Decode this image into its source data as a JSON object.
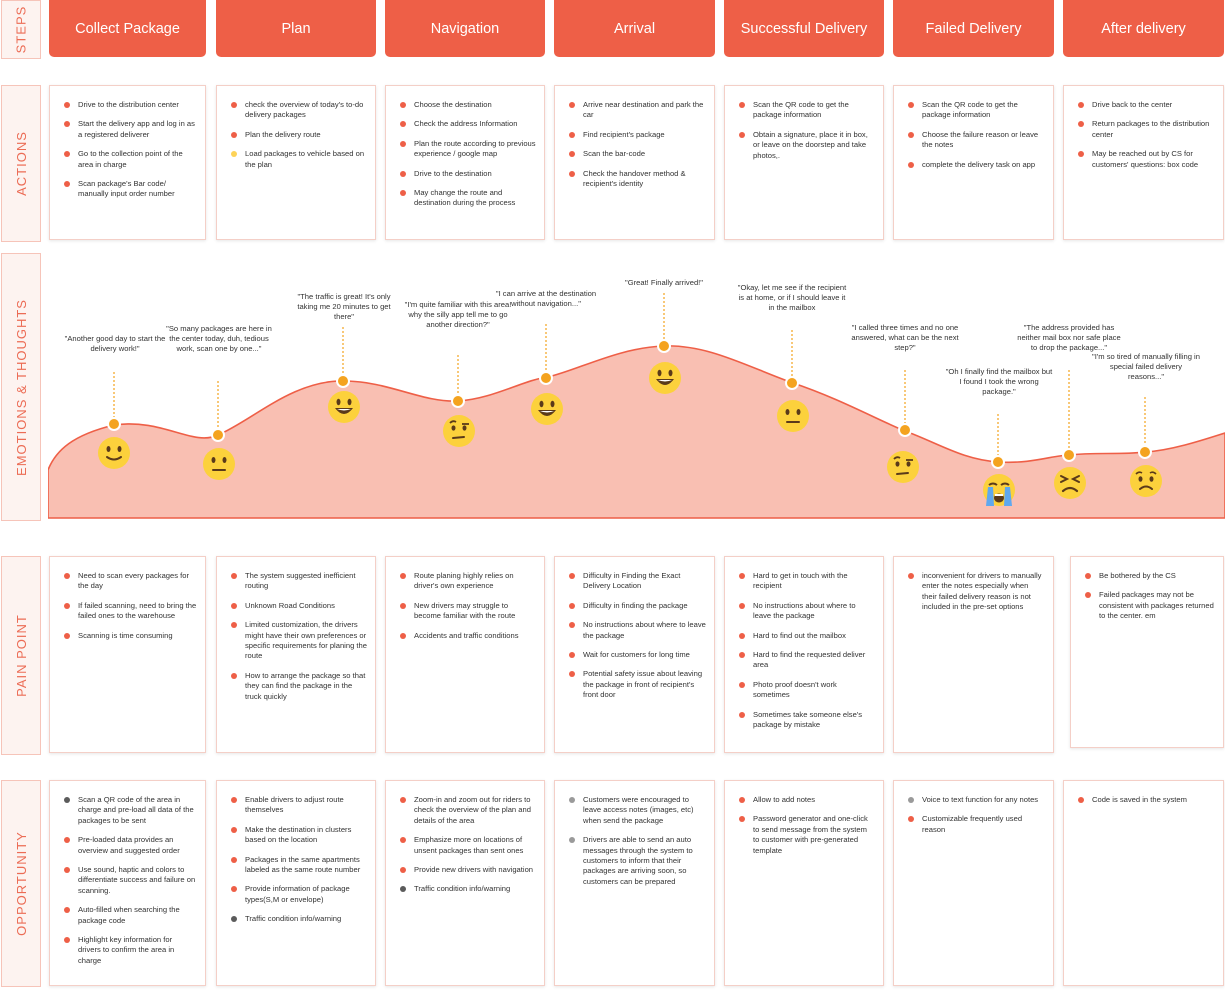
{
  "row_labels": {
    "steps": "STEPS",
    "actions": "ACTIONS",
    "emotions": "EMOTIONS & THOUGHTS",
    "pain": "PAIN POINT",
    "opportunity": "OPPORTUNITY"
  },
  "colors": {
    "accent": "#ee5f47",
    "curve_fill": "#f9bfb2",
    "point": "#f4a31f",
    "emoji_face": "#fcd13c",
    "bullet_yellow": "#fdd358",
    "bullet_gray": "#5b5b5b",
    "bullet_lightgray": "#9a9a9a"
  },
  "columns": [
    {
      "step": "Collect Package",
      "actions": [
        {
          "text": "Drive to the distribution center",
          "dot": "red"
        },
        {
          "text": "Start the delivery app and log in as a registered deliverer",
          "dot": "red"
        },
        {
          "text": "Go to the collection point of the area in charge",
          "dot": "red"
        },
        {
          "text": "Scan package's Bar code/ manually input order number",
          "dot": "red"
        }
      ],
      "pain": [
        {
          "text": "Need to scan every packages for the day",
          "dot": "red"
        },
        {
          "text": "If failed scanning, need to bring the failed ones to the warehouse",
          "dot": "red"
        },
        {
          "text": "Scanning is time consuming",
          "dot": "red"
        }
      ],
      "opportunity": [
        {
          "text": "Scan a QR code of the area in charge and pre-load all data of the packages to be sent",
          "dot": "gray"
        },
        {
          "text": "Pre-loaded data provides an overview and suggested order",
          "dot": "red"
        },
        {
          "text": "Use sound, haptic and colors to differentiate success and failure on scanning.",
          "dot": "red"
        },
        {
          "text": "Auto-filled when searching the package code",
          "dot": "red"
        },
        {
          "text": "Highlight key information for drivers to confirm the area in charge",
          "dot": "red"
        }
      ]
    },
    {
      "step": "Plan",
      "actions": [
        {
          "text": "check the overview of today's to-do delivery packages",
          "dot": "red"
        },
        {
          "text": "Plan the delivery route",
          "dot": "red"
        },
        {
          "text": "Load packages to vehicle based on the plan",
          "dot": "yellow"
        }
      ],
      "pain": [
        {
          "text": "The system suggested inefficient routing",
          "dot": "red"
        },
        {
          "text": "Unknown Road Conditions",
          "dot": "red"
        },
        {
          "text": "Limited customization, the drivers might have their own preferences or specific requirements for planing the route",
          "dot": "red"
        },
        {
          "text": "How to arrange the package so that they can find the package in the truck quickly",
          "dot": "red"
        }
      ],
      "opportunity": [
        {
          "text": "Enable drivers to adjust route themselves",
          "dot": "red"
        },
        {
          "text": "Make the destination in clusters based on the location",
          "dot": "red"
        },
        {
          "text": "Packages in the same apartments labeled as the same route number",
          "dot": "red"
        },
        {
          "text": "Provide information of package types(S,M or envelope)",
          "dot": "red"
        },
        {
          "text": "Traffic condition info/warning",
          "dot": "gray"
        }
      ]
    },
    {
      "step": "Navigation",
      "actions": [
        {
          "text": "Choose the destination",
          "dot": "red"
        },
        {
          "text": "Check the address Information",
          "dot": "red"
        },
        {
          "text": "Plan the route according to previous experience / google map",
          "dot": "red"
        },
        {
          "text": "Drive to the destination",
          "dot": "red"
        },
        {
          "text": "May change the route and destination during the process",
          "dot": "red"
        }
      ],
      "pain": [
        {
          "text": "Route planing highly relies on driver's own experience",
          "dot": "red"
        },
        {
          "text": "New drivers may struggle to become familiar with the route",
          "dot": "red"
        },
        {
          "text": "Accidents and traffic conditions",
          "dot": "red"
        }
      ],
      "opportunity": [
        {
          "text": "Zoom-in and zoom out for riders to check the overview of the plan and details of the area",
          "dot": "red"
        },
        {
          "text": "Emphasize more on locations of unsent packages than sent ones",
          "dot": "red"
        },
        {
          "text": "Provide new drivers with navigation",
          "dot": "red"
        },
        {
          "text": "Traffic condition info/warning",
          "dot": "gray"
        }
      ]
    },
    {
      "step": "Arrival",
      "actions": [
        {
          "text": "Arrive near destination and park the car",
          "dot": "red"
        },
        {
          "text": "Find recipient's package",
          "dot": "red"
        },
        {
          "text": "Scan the bar-code",
          "dot": "red"
        },
        {
          "text": "Check the handover method & recipient's identity",
          "dot": "red"
        }
      ],
      "pain": [
        {
          "text": "Difficulty in Finding the Exact Delivery Location",
          "dot": "red"
        },
        {
          "text": "Difficulty in finding the package",
          "dot": "red"
        },
        {
          "text": "No instructions about where to leave the package",
          "dot": "red"
        },
        {
          "text": "Wait for customers for long time",
          "dot": "red"
        },
        {
          "text": "Potential safety issue about leaving the package in front of recipient's front door",
          "dot": "red"
        }
      ],
      "opportunity": [
        {
          "text": "Customers were encouraged to leave access notes (images, etc) when send the package",
          "dot": "lightgray"
        },
        {
          "text": "Drivers are able to send an auto messages through the system to customers to inform that their packages are arriving soon, so customers can be prepared",
          "dot": "lightgray"
        }
      ]
    },
    {
      "step": "Successful Delivery",
      "actions": [
        {
          "text": "Scan the QR code to get the package information",
          "dot": "red"
        },
        {
          "text": "Obtain a signature, place it in box, or leave on the doorstep and take photos,.",
          "dot": "red"
        }
      ],
      "pain": [
        {
          "text": "Hard to get in touch with the recipient",
          "dot": "red"
        },
        {
          "text": "No instructions about where to leave the package",
          "dot": "red"
        },
        {
          "text": "Hard to find out the mailbox",
          "dot": "red"
        },
        {
          "text": "Hard to find the requested deliver area",
          "dot": "red"
        },
        {
          "text": "Photo proof doesn't work sometimes",
          "dot": "red"
        },
        {
          "text": "Sometimes take someone else's package by mistake",
          "dot": "red"
        }
      ],
      "opportunity": [
        {
          "text": "Allow to add notes",
          "dot": "red"
        },
        {
          "text": "Password generator and one-click to send message from the system to customer with pre-generated template",
          "dot": "red"
        }
      ]
    },
    {
      "step": "Failed Delivery",
      "actions": [
        {
          "text": "Scan the QR code to get the package information",
          "dot": "red"
        },
        {
          "text": "Choose the failure reason or leave the notes",
          "dot": "red"
        },
        {
          "text": "complete the delivery task on app",
          "dot": "red"
        }
      ],
      "pain": [
        {
          "text": "inconvenient for drivers to manually enter the notes especially when their failed delivery reason is not included in the pre-set options",
          "dot": "red"
        }
      ],
      "opportunity": [
        {
          "text": "Voice to text function for any notes",
          "dot": "lightgray"
        },
        {
          "text": "Customizable frequently used reason",
          "dot": "red"
        }
      ]
    },
    {
      "step": "After delivery",
      "actions": [
        {
          "text": "Drive back to the center",
          "dot": "red"
        },
        {
          "text": "Return packages to the distribution center",
          "dot": "red"
        },
        {
          "text": "May be reached out by CS for customers' questions: box code",
          "dot": "red"
        }
      ],
      "pain": [
        {
          "text": "Be bothered by the CS",
          "dot": "red"
        },
        {
          "text": "Failed packages may not be consistent with packages returned to the center. em",
          "dot": "red"
        }
      ],
      "opportunity": [
        {
          "text": "Code is saved in the system",
          "dot": "red"
        }
      ]
    }
  ],
  "emotions": [
    {
      "quote": "\"Another good day to start the delivery work!\"",
      "emoji": "slight-smile"
    },
    {
      "quote": "\"So many packages are here in the center today, duh, tedious work, scan one by one...\"",
      "emoji": "neutral"
    },
    {
      "quote": "\"The traffic is great! It's only taking me 20 minutes to get there\"",
      "emoji": "grin"
    },
    {
      "quote": "\"I'm quite familiar with this area! why the silly app tell me to go another direction?\"",
      "emoji": "raised-eyebrow"
    },
    {
      "quote": "\"I can arrive at the destination without navigation...\"",
      "emoji": "grin"
    },
    {
      "quote": "\"Great! Finally arrived!\"",
      "emoji": "grin"
    },
    {
      "quote": "\"Okay, let me see if the recipient is at home, or if I should leave it in the mailbox",
      "emoji": "neutral"
    },
    {
      "quote": "\"I called three times and no one answered, what can be the next step?\"",
      "emoji": "raised-eyebrow"
    },
    {
      "quote": "\"Oh I finally find the mailbox but I found I took the wrong package.\"",
      "emoji": "crying"
    },
    {
      "quote": "\"The address provided has neither mail box nor safe place to drop the package...\"",
      "emoji": "persevere"
    },
    {
      "quote": "\"I'm so tired of manually filling in special failed delivery reasons...\"",
      "emoji": "worried"
    }
  ]
}
